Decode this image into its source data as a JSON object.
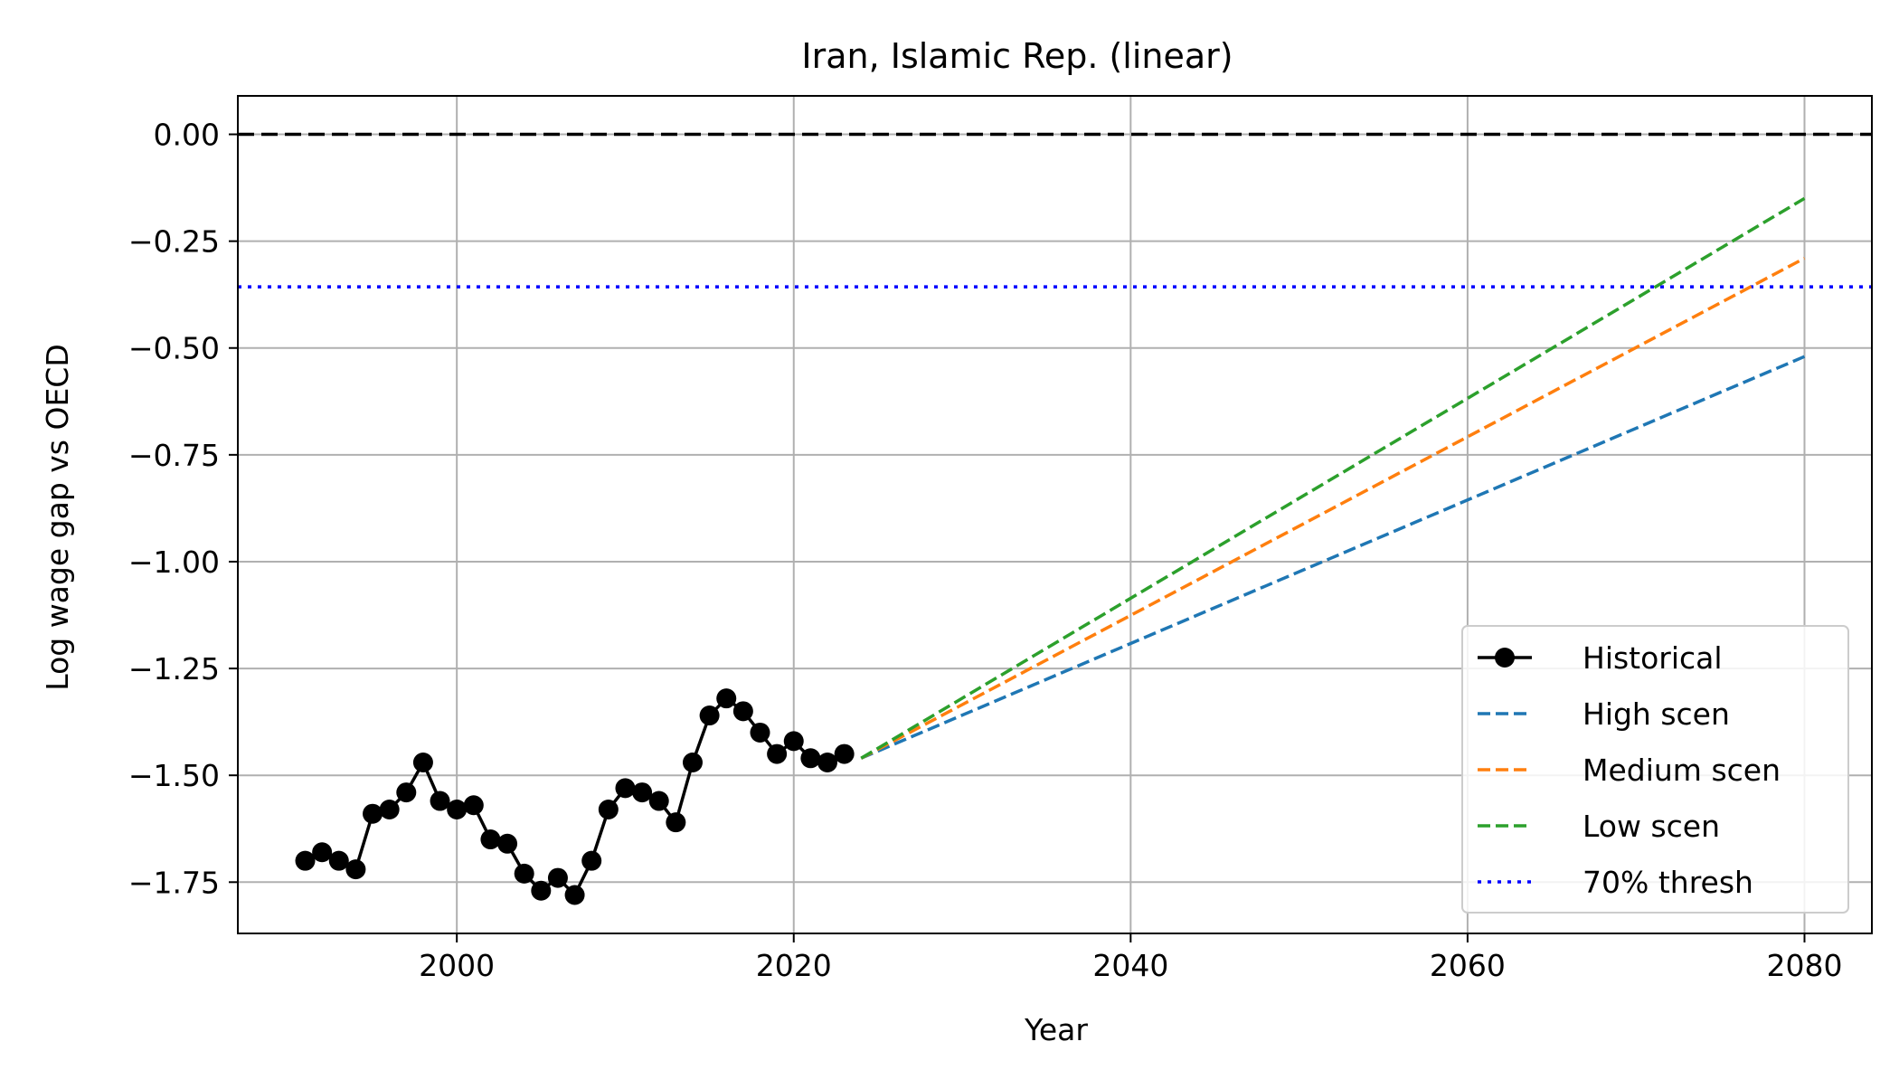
{
  "chart_data": {
    "type": "line",
    "title": "Iran, Islamic Rep. (linear)",
    "xlabel": "Year",
    "ylabel": "Log wage gap vs OECD",
    "xlim": [
      1987,
      2084
    ],
    "ylim": [
      -1.87,
      0.09
    ],
    "xticks": [
      2000,
      2020,
      2040,
      2060,
      2080
    ],
    "xtick_labels": [
      "2000",
      "2020",
      "2040",
      "2060",
      "2080"
    ],
    "yticks": [
      0.0,
      -0.25,
      -0.5,
      -0.75,
      -1.0,
      -1.25,
      -1.5,
      -1.75
    ],
    "ytick_labels": [
      "0.00",
      "−0.25",
      "−0.50",
      "−0.75",
      "−1.00",
      "−1.25",
      "−1.50",
      "−1.75"
    ],
    "grid": true,
    "legend_position": "lower-right",
    "reference_lines": [
      {
        "y": 0.0,
        "style": "dashed",
        "color": "#000000"
      },
      {
        "y": -0.357,
        "style": "dotted",
        "color": "#0000ff",
        "name": "70% thresh"
      }
    ],
    "series": [
      {
        "name": "Historical",
        "style": "solid-marker",
        "color": "#000000",
        "x": [
          1991,
          1992,
          1993,
          1994,
          1995,
          1996,
          1997,
          1998,
          1999,
          2000,
          2001,
          2002,
          2003,
          2004,
          2005,
          2006,
          2007,
          2008,
          2009,
          2010,
          2011,
          2012,
          2013,
          2014,
          2015,
          2016,
          2017,
          2018,
          2019,
          2020,
          2021,
          2022,
          2023
        ],
        "y": [
          -1.7,
          -1.68,
          -1.7,
          -1.72,
          -1.59,
          -1.58,
          -1.54,
          -1.47,
          -1.56,
          -1.58,
          -1.57,
          -1.65,
          -1.66,
          -1.73,
          -1.77,
          -1.74,
          -1.78,
          -1.7,
          -1.58,
          -1.53,
          -1.54,
          -1.56,
          -1.61,
          -1.47,
          -1.36,
          -1.32,
          -1.35,
          -1.4,
          -1.45,
          -1.42,
          -1.46,
          -1.47,
          -1.45
        ]
      },
      {
        "name": "High scen",
        "style": "dashed",
        "color": "#1f77b4",
        "x": [
          2024,
          2080
        ],
        "y": [
          -1.46,
          -0.52
        ]
      },
      {
        "name": "Medium scen",
        "style": "dashed",
        "color": "#ff7f0e",
        "x": [
          2024,
          2080
        ],
        "y": [
          -1.46,
          -0.29
        ]
      },
      {
        "name": "Low scen",
        "style": "dashed",
        "color": "#2ca02c",
        "x": [
          2024,
          2080
        ],
        "y": [
          -1.46,
          -0.15
        ]
      }
    ],
    "legend": [
      "Historical",
      "High scen",
      "Medium scen",
      "Low scen",
      "70% thresh"
    ]
  }
}
